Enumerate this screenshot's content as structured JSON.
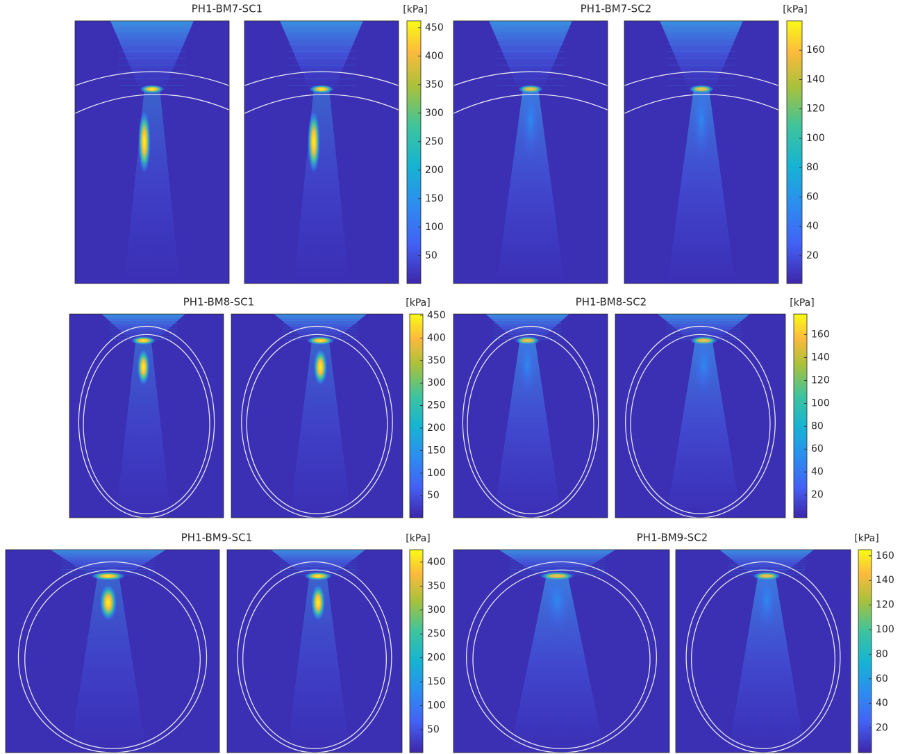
{
  "chart_data": [
    {
      "type": "heatmap",
      "title": "PH1-BM7-SC1",
      "colorbar_label": "[kPa]",
      "ylim": [
        1,
        462
      ],
      "yticks": [
        50,
        100,
        150,
        200,
        250,
        300,
        350,
        400,
        450
      ]
    },
    {
      "type": "heatmap",
      "title": "PH1-BM7-SC2",
      "colorbar_label": "[kPa]",
      "ylim": [
        1,
        180
      ],
      "yticks": [
        20,
        40,
        60,
        80,
        100,
        120,
        140,
        160
      ]
    },
    {
      "type": "heatmap",
      "title": "PH1-BM8-SC1",
      "colorbar_label": "[kPa]",
      "ylim": [
        1,
        453
      ],
      "yticks": [
        50,
        100,
        150,
        200,
        250,
        300,
        350,
        400,
        450
      ]
    },
    {
      "type": "heatmap",
      "title": "PH1-BM8-SC2",
      "colorbar_label": "[kPa]",
      "ylim": [
        0,
        178
      ],
      "yticks": [
        20,
        40,
        60,
        80,
        100,
        120,
        140,
        160
      ]
    },
    {
      "type": "heatmap",
      "title": "PH1-BM9-SC1",
      "colorbar_label": "[kPa]",
      "ylim": [
        2,
        426
      ],
      "yticks": [
        50,
        100,
        150,
        200,
        250,
        300,
        350,
        400
      ]
    },
    {
      "type": "heatmap",
      "title": "PH1-BM9-SC2",
      "colorbar_label": "[kPa]",
      "ylim": [
        0,
        165
      ],
      "yticks": [
        20,
        40,
        60,
        80,
        100,
        120,
        140,
        160
      ]
    }
  ]
}
